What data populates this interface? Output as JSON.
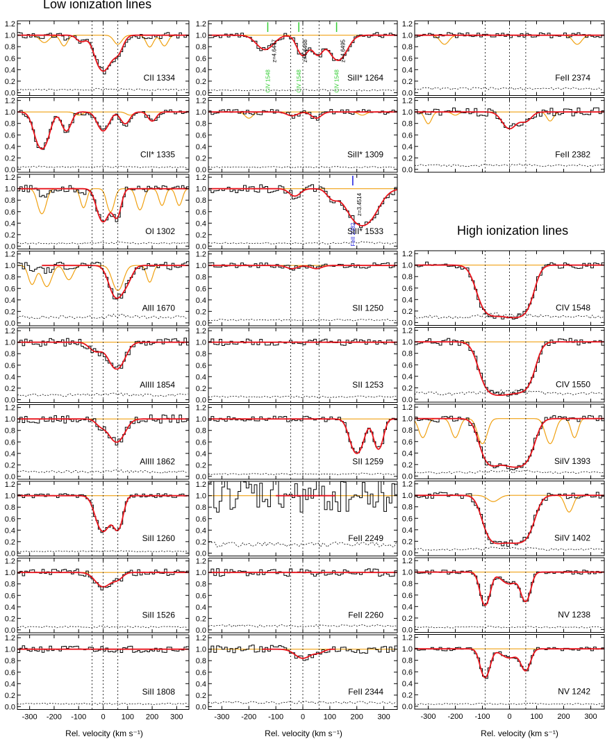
{
  "headings": {
    "low": "Low ionization lines",
    "high": "High ionization lines"
  },
  "colors": {
    "data": "#000000",
    "fit": "#e8131b",
    "blend": "#f0a010",
    "error": "#000000",
    "civ_marker": "#33cc33",
    "blend_marker": "#1a1adf"
  },
  "chart_data": {
    "type": "line",
    "xlabel": "Rel. velocity (km s⁻¹)",
    "xlim": [
      -350,
      350
    ],
    "ylim": [
      -0.05,
      1.25
    ],
    "xticks": [
      -300,
      -200,
      -100,
      0,
      100,
      200,
      300
    ],
    "yticks": [
      0.0,
      0.2,
      0.4,
      0.6,
      0.8,
      1.0,
      1.2
    ],
    "xtick_labels": [
      "-300",
      "-200",
      "-100",
      "0",
      "100",
      "200",
      "300"
    ],
    "ytick_labels": [
      "0.0",
      "0.2",
      "0.4",
      "0.6",
      "0.8",
      "1.0",
      "1.2"
    ],
    "columns": [
      {
        "heading": "low",
        "vlines": [
          -45,
          0,
          60
        ],
        "panels": [
          {
            "label": "CII 1334",
            "comps": [
              [
                0,
                0.85,
                28
              ],
              [
                60,
                0.3,
                20
              ],
              [
                -90,
                0.1,
                18
              ]
            ],
            "blend": [
              [
                -240,
                0.12,
                18
              ],
              [
                -160,
                0.18,
                14
              ],
              [
                60,
                0.15,
                16
              ],
              [
                190,
                0.2,
                14
              ],
              [
                250,
                0.18,
                14
              ]
            ],
            "noise": 0.05,
            "err": 0.05
          },
          {
            "label": "CII* 1335",
            "comps": [
              [
                -250,
                0.9,
                25
              ],
              [
                -150,
                0.35,
                18
              ],
              [
                0,
                0.35,
                22
              ],
              [
                90,
                0.2,
                18
              ],
              [
                200,
                0.15,
                16
              ]
            ],
            "blend": [
              [
                -100,
                0.05,
                15
              ],
              [
                110,
                0.05,
                15
              ]
            ],
            "noise": 0.04,
            "err": 0.04
          },
          {
            "label": "OI 1302",
            "comps": [
              [
                0,
                0.75,
                22
              ],
              [
                55,
                0.6,
                16
              ]
            ],
            "blend": [
              [
                -250,
                0.5,
                16
              ],
              [
                -80,
                0.35,
                12
              ],
              [
                30,
                0.45,
                14
              ],
              [
                150,
                0.4,
                14
              ],
              [
                240,
                0.3,
                12
              ],
              [
                310,
                0.3,
                12
              ]
            ],
            "noise": 0.05,
            "err": 0.05
          },
          {
            "label": "AlII 1670",
            "comps": [
              [
                55,
                0.72,
                26
              ],
              [
                100,
                0.2,
                20
              ]
            ],
            "blend": [
              [
                -290,
                0.35,
                14
              ],
              [
                -230,
                0.4,
                18
              ],
              [
                -140,
                0.25,
                16
              ],
              [
                60,
                0.5,
                20
              ],
              [
                190,
                0.3,
                12
              ]
            ],
            "noise": 0.06,
            "err": 0.1,
            "fit_from": -250
          },
          {
            "label": "AlIII 1854",
            "comps": [
              [
                55,
                0.55,
                30
              ],
              [
                -30,
                0.15,
                25
              ]
            ],
            "blend": [],
            "noise": 0.06,
            "err": 0.08
          },
          {
            "label": "AlIII 1862",
            "comps": [
              [
                55,
                0.45,
                30
              ],
              [
                -10,
                0.1,
                20
              ]
            ],
            "blend": [],
            "noise": 0.06,
            "err": 0.08
          },
          {
            "label": "SiII 1260",
            "comps": [
              [
                0,
                0.85,
                26
              ],
              [
                60,
                0.75,
                18
              ]
            ],
            "blend": [],
            "noise": 0.03,
            "err": 0.03
          },
          {
            "label": "SiII 1526",
            "comps": [
              [
                0,
                0.25,
                30
              ],
              [
                60,
                0.1,
                20
              ]
            ],
            "blend": [],
            "noise": 0.05,
            "err": 0.05
          },
          {
            "label": "SiII 1808",
            "comps": [],
            "blend": [],
            "noise": 0.05,
            "err": 0.05
          }
        ]
      },
      {
        "heading": "",
        "vlines": [
          -45,
          0,
          60
        ],
        "panels": [
          {
            "label": "SiII* 1264",
            "comps": [
              [
                -140,
                0.25,
                30
              ],
              [
                0,
                0.38,
                20
              ],
              [
                55,
                0.35,
                18
              ],
              [
                130,
                0.5,
                30
              ]
            ],
            "blend": [],
            "noise": 0.04,
            "err": 0.04,
            "markers": [
              {
                "v": -130,
                "color": "civ_marker",
                "text": "CIV 1548",
                "z": "z=4.6447"
              },
              {
                "v": -15,
                "color": "civ_marker",
                "text": "CIV 1548",
                "z": "z=4.6468"
              },
              {
                "v": 125,
                "color": "civ_marker",
                "text": "CIV 1548",
                "z": "z=4.6495"
              }
            ]
          },
          {
            "label": "SiII* 1309",
            "comps": [
              [
                -40,
                0.06,
                20
              ],
              [
                50,
                0.1,
                18
              ]
            ],
            "blend": [
              [
                -200,
                0.1,
                14
              ],
              [
                220,
                0.05,
                14
              ]
            ],
            "noise": 0.04,
            "err": 0.04
          },
          {
            "label": "SiII* 1533",
            "comps": [
              [
                220,
                0.9,
                45
              ],
              [
                110,
                0.15,
                20
              ],
              [
                -30,
                0.12,
                20
              ]
            ],
            "blend": [],
            "noise": 0.06,
            "err": 0.05,
            "markers": [
              {
                "v": 185,
                "color": "blend_marker",
                "text": "FeII 2382",
                "z": "z=3.4514"
              }
            ]
          },
          {
            "label": "SII 1250",
            "comps": [
              [
                -40,
                0.05,
                20
              ],
              [
                50,
                0.05,
                20
              ]
            ],
            "blend": [],
            "noise": 0.04,
            "err": 0.05
          },
          {
            "label": "SII 1253",
            "comps": [],
            "blend": [],
            "noise": 0.05,
            "err": 0.05
          },
          {
            "label": "SII 1259",
            "comps": [
              [
                200,
                0.8,
                22
              ],
              [
                280,
                0.65,
                16
              ]
            ],
            "blend": [],
            "noise": 0.04,
            "err": 0.04
          },
          {
            "label": "FeII 2249",
            "comps": [],
            "blend": [],
            "noise": 0.25,
            "err": 0.15,
            "fit_from": -100,
            "fit_to": 120
          },
          {
            "label": "FeII 2260",
            "comps": [],
            "blend": [],
            "noise": 0.06,
            "err": 0.07,
            "fit_from": -350
          },
          {
            "label": "FeII 2344",
            "comps": [
              [
                0,
                0.15,
                28
              ],
              [
                60,
                0.05,
                18
              ]
            ],
            "blend": [],
            "noise": 0.06,
            "err": 0.07,
            "fit_from": -150,
            "fit_to": 120
          }
        ]
      },
      {
        "heading": "high",
        "vlines": [
          -90,
          0,
          60
        ],
        "panels": [
          {
            "label": "FeII 2374",
            "comps": [],
            "blend": [
              [
                -240,
                0.15,
                16
              ],
              [
                250,
                0.15,
                16
              ]
            ],
            "noise": 0.04,
            "err": 0.07
          },
          {
            "label": "FeII 2382",
            "comps": [
              [
                0,
                0.3,
                25
              ],
              [
                60,
                0.15,
                20
              ]
            ],
            "blend": [
              [
                -300,
                0.2,
                12
              ],
              [
                -200,
                0.05,
                12
              ],
              [
                150,
                0.15,
                12
              ]
            ],
            "noise": 0.06,
            "err": 0.07
          },
          {
            "label": "CIV 1548",
            "comps": [
              [
                -70,
                1.6,
                35
              ],
              [
                0,
                1.6,
                35
              ],
              [
                50,
                1.2,
                30
              ]
            ],
            "blend": [],
            "noise": 0.05,
            "err": 0.1
          },
          {
            "label": "CIV 1550",
            "comps": [
              [
                -60,
                1.8,
                35
              ],
              [
                0,
                1.5,
                35
              ],
              [
                55,
                1.2,
                30
              ]
            ],
            "blend": [],
            "noise": 0.05,
            "err": 0.1
          },
          {
            "label": "SiIV 1393",
            "comps": [
              [
                -70,
                1.3,
                30
              ],
              [
                0,
                1.3,
                35
              ],
              [
                55,
                1.0,
                30
              ]
            ],
            "blend": [
              [
                -320,
                0.35,
                14
              ],
              [
                -200,
                0.35,
                14
              ],
              [
                -100,
                0.5,
                16
              ],
              [
                150,
                0.5,
                16
              ],
              [
                240,
                0.35,
                12
              ]
            ],
            "noise": 0.05,
            "err": 0.06
          },
          {
            "label": "SiIV 1402",
            "comps": [
              [
                -60,
                1.2,
                30
              ],
              [
                0,
                1.2,
                35
              ],
              [
                55,
                1.0,
                30
              ]
            ],
            "blend": [
              [
                -60,
                0.1,
                20
              ],
              [
                220,
                0.3,
                14
              ]
            ],
            "noise": 0.05,
            "err": 0.06
          },
          {
            "label": "NV 1238",
            "comps": [
              [
                -90,
                0.75,
                16
              ],
              [
                0,
                0.2,
                30
              ],
              [
                60,
                0.6,
                16
              ]
            ],
            "blend": [],
            "noise": 0.03,
            "err": 0.04
          },
          {
            "label": "NV 1242",
            "comps": [
              [
                -90,
                0.6,
                16
              ],
              [
                0,
                0.15,
                30
              ],
              [
                60,
                0.4,
                16
              ]
            ],
            "blend": [],
            "noise": 0.03,
            "err": 0.04
          }
        ]
      }
    ]
  }
}
